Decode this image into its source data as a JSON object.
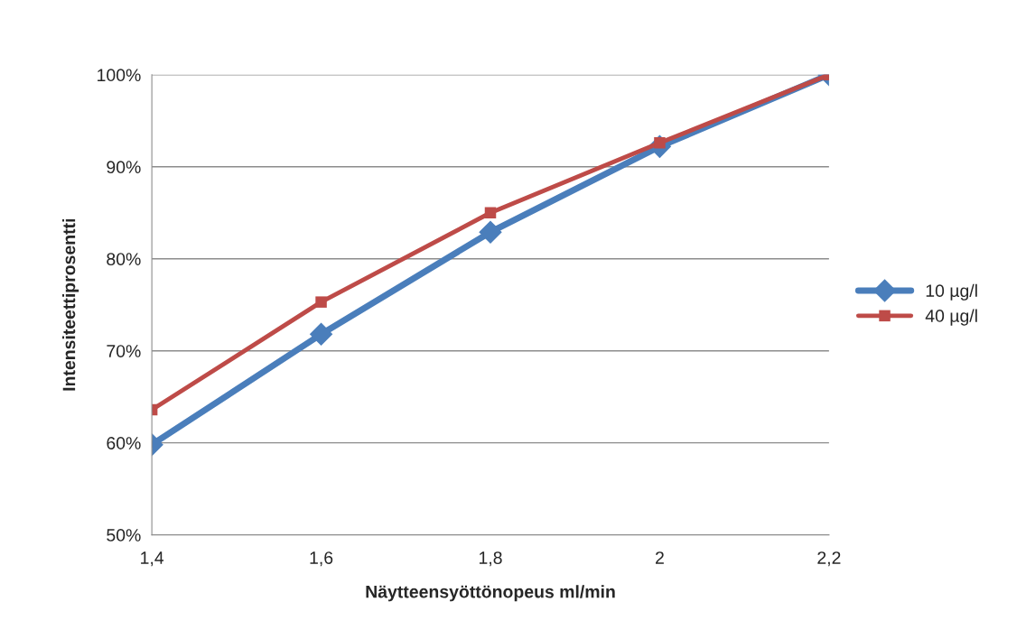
{
  "chart_data": {
    "type": "line",
    "xlabel": "Näytteensyöttönopeus ml/min",
    "ylabel": "Intensiteettiprosentti",
    "categories": [
      "1,4",
      "1,6",
      "1,8",
      "2",
      "2,2"
    ],
    "series": [
      {
        "name": "10 µg/l",
        "color": "#4a7ebb",
        "marker": "diamond",
        "values": [
          59.8,
          71.8,
          82.9,
          92.2,
          100
        ]
      },
      {
        "name": "40 µg/l",
        "color": "#be4b48",
        "marker": "square",
        "values": [
          63.6,
          75.3,
          85.0,
          92.6,
          100
        ]
      }
    ],
    "ylim": [
      50,
      100
    ],
    "yticks": [
      {
        "value": 50,
        "label": "50%"
      },
      {
        "value": 60,
        "label": "60%"
      },
      {
        "value": 70,
        "label": "70%"
      },
      {
        "value": 80,
        "label": "80%"
      },
      {
        "value": 90,
        "label": "90%"
      },
      {
        "value": 100,
        "label": "100%"
      }
    ],
    "grid": "y",
    "legend": "right",
    "line_style": "solid"
  }
}
